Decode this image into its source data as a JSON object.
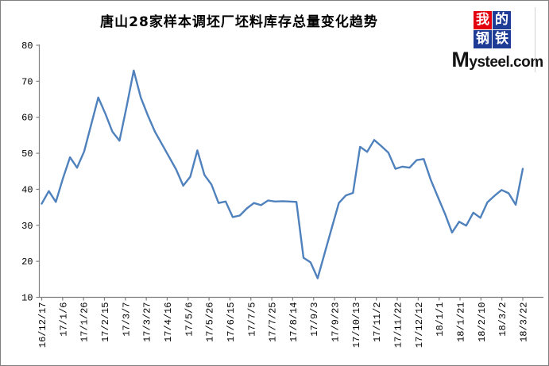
{
  "title": "唐山28家样本调坯厂坯料库存总量变化趋势",
  "logo": {
    "grid_chars": [
      "我",
      "的",
      "钢",
      "铁"
    ],
    "grid_colors": [
      "#E3000F",
      "#1E3C96",
      "#1E3C96",
      "#1E3C96"
    ],
    "domain": "Mysteel.com",
    "text_color": "#ffffff"
  },
  "chart_data": {
    "type": "line",
    "title": "唐山28家样本调坯厂坯料库存总量变化趋势",
    "x_tick_labels": [
      "16/12/17",
      "17/1/6",
      "17/1/26",
      "17/2/15",
      "17/3/7",
      "17/3/27",
      "17/4/16",
      "17/5/6",
      "17/5/26",
      "17/6/15",
      "17/7/5",
      "17/7/25",
      "17/8/14",
      "17/9/3",
      "17/9/23",
      "17/10/13",
      "17/11/2",
      "17/11/22",
      "17/12/12",
      "18/1/1",
      "18/1/21",
      "18/2/10",
      "18/3/2",
      "18/3/22"
    ],
    "values": [
      36,
      39.5,
      36.5,
      43,
      48.9,
      46,
      50.5,
      58,
      65.5,
      61,
      56,
      53.5,
      63,
      73,
      65.5,
      60.5,
      56,
      52.5,
      49,
      45.5,
      41,
      43.5,
      50.8,
      44,
      41.3,
      36.2,
      36.6,
      32.3,
      32.7,
      34.7,
      36.2,
      35.6,
      36.9,
      36.6,
      36.7,
      36.6,
      36.5,
      21,
      19.7,
      15.3,
      22.3,
      29.3,
      36.2,
      38.3,
      39,
      51.8,
      50.4,
      53.7,
      52,
      50.2,
      45.7,
      46.3,
      46,
      48.1,
      48.4,
      42.6,
      37.9,
      33.2,
      28,
      31,
      29.9,
      33.5,
      32.1,
      36.4,
      38.2,
      39.8,
      38.9,
      35.7,
      45.7
    ],
    "ylim": [
      10,
      80
    ],
    "ytick_interval": 10,
    "xlabel": "",
    "ylabel": "",
    "grid": "off",
    "legend": "none",
    "line_color": "#4F81BD",
    "axis_color": "#808080"
  }
}
